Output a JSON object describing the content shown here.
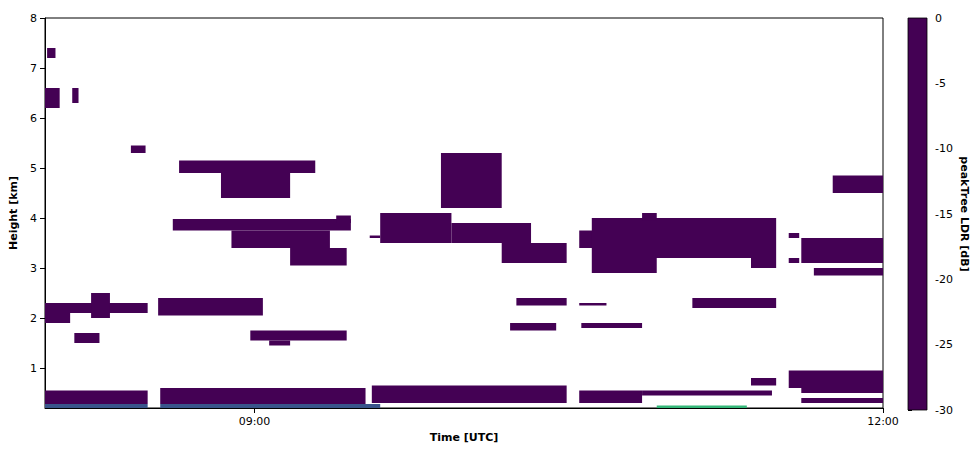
{
  "chart_data": {
    "type": "heatmap",
    "xlabel": "Time [UTC]",
    "ylabel": "Height [km]",
    "xlim": [
      8,
      12
    ],
    "xticks": [
      {
        "value": 9,
        "label": "09:00"
      },
      {
        "value": 12,
        "label": "12:00"
      }
    ],
    "ylim": [
      0.2,
      8
    ],
    "yticks": [
      1,
      2,
      3,
      4,
      5,
      6,
      7,
      8
    ],
    "cells": [
      [
        8.01,
        8.05,
        7.2,
        7.4,
        -30
      ],
      [
        8.0,
        8.07,
        6.2,
        6.6,
        -30
      ],
      [
        8.13,
        8.16,
        6.3,
        6.6,
        -30
      ],
      [
        8.41,
        8.48,
        5.3,
        5.45,
        -30
      ],
      [
        8.64,
        9.29,
        4.9,
        5.15,
        -30
      ],
      [
        8.84,
        9.17,
        4.4,
        4.9,
        -30
      ],
      [
        8.61,
        9.46,
        3.75,
        3.98,
        -30
      ],
      [
        8.89,
        9.36,
        3.4,
        3.75,
        -30
      ],
      [
        9.17,
        9.44,
        3.05,
        3.4,
        -30
      ],
      [
        9.39,
        9.46,
        3.9,
        4.05,
        -30
      ],
      [
        9.55,
        9.6,
        3.6,
        3.65,
        -30
      ],
      [
        9.6,
        9.94,
        3.5,
        4.1,
        -30
      ],
      [
        9.94,
        10.32,
        3.5,
        3.9,
        -30
      ],
      [
        10.18,
        10.49,
        3.1,
        3.5,
        -30
      ],
      [
        9.89,
        10.18,
        4.2,
        5.3,
        -30
      ],
      [
        10.55,
        10.63,
        3.4,
        3.75,
        -30
      ],
      [
        10.61,
        11.49,
        3.2,
        4.0,
        -30
      ],
      [
        10.61,
        10.92,
        2.9,
        3.2,
        -30
      ],
      [
        11.37,
        11.49,
        3.0,
        3.2,
        -30
      ],
      [
        10.85,
        10.92,
        3.95,
        4.1,
        -30
      ],
      [
        11.55,
        11.6,
        3.6,
        3.7,
        -30
      ],
      [
        11.55,
        11.6,
        3.1,
        3.2,
        -30
      ],
      [
        11.61,
        12.0,
        3.1,
        3.6,
        -30
      ],
      [
        11.67,
        12.0,
        2.85,
        3.0,
        -30
      ],
      [
        11.76,
        12.0,
        4.5,
        4.85,
        -30
      ],
      [
        8.0,
        8.49,
        2.1,
        2.3,
        -30
      ],
      [
        8.22,
        8.31,
        2.0,
        2.5,
        -30
      ],
      [
        8.54,
        9.04,
        2.05,
        2.4,
        -30
      ],
      [
        8.0,
        8.12,
        1.9,
        2.1,
        -30
      ],
      [
        8.14,
        8.26,
        1.5,
        1.7,
        -30
      ],
      [
        8.98,
        9.44,
        1.55,
        1.75,
        -30
      ],
      [
        9.07,
        9.17,
        1.45,
        1.55,
        -30
      ],
      [
        10.25,
        10.49,
        2.25,
        2.4,
        -30
      ],
      [
        10.22,
        10.44,
        1.75,
        1.9,
        -30
      ],
      [
        10.55,
        10.68,
        2.25,
        2.3,
        -30
      ],
      [
        10.56,
        10.85,
        1.8,
        1.9,
        -30
      ],
      [
        11.09,
        11.49,
        2.2,
        2.4,
        -30
      ],
      [
        8.0,
        8.49,
        0.28,
        0.55,
        -30
      ],
      [
        8.0,
        8.49,
        0.2,
        0.28,
        -22
      ],
      [
        8.55,
        9.53,
        0.28,
        0.6,
        -30
      ],
      [
        8.55,
        9.6,
        0.2,
        0.28,
        -22
      ],
      [
        9.56,
        10.49,
        0.3,
        0.65,
        -30
      ],
      [
        10.55,
        10.85,
        0.3,
        0.55,
        -30
      ],
      [
        10.85,
        11.47,
        0.45,
        0.55,
        -30
      ],
      [
        11.37,
        11.49,
        0.65,
        0.8,
        -30
      ],
      [
        11.55,
        12.0,
        0.6,
        0.95,
        -30
      ],
      [
        11.61,
        12.0,
        0.5,
        0.6,
        -30
      ],
      [
        10.92,
        11.35,
        0.2,
        0.25,
        -10
      ],
      [
        11.61,
        12.0,
        0.3,
        0.4,
        -30
      ]
    ],
    "colorbar": {
      "label": "peakTree LDR [dB]",
      "range": [
        -30,
        0
      ],
      "ticks": [
        0,
        -5,
        -10,
        -15,
        -20,
        -25,
        -30
      ]
    }
  }
}
